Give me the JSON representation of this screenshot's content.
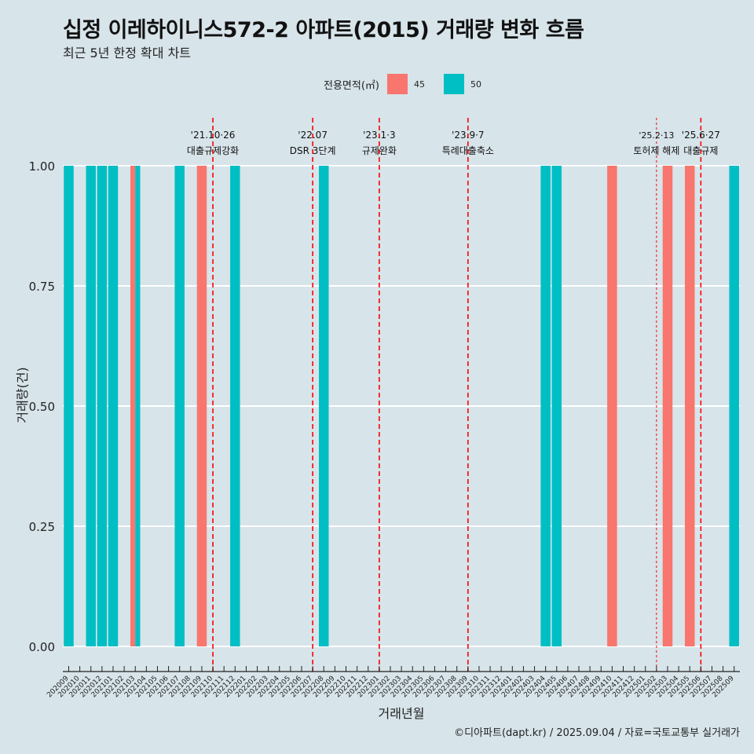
{
  "title": "십정 이레하이니스572-2 아파트(2015) 거래량 변화 흐름",
  "subtitle": "최근 5년 한정 확대 차트",
  "caption": "©디아파트(dapt.kr) / 2025.09.04 / 자료=국토교통부 실거래가",
  "colors": {
    "45": "#f8766d",
    "50": "#00bfc4",
    "background": "#d7e4ea",
    "grid": "#ffffff",
    "event_line": "#ff0000"
  },
  "chart_data": {
    "type": "bar",
    "xlabel": "거래년월",
    "ylabel": "거래량(건)",
    "ylim": [
      0,
      1
    ],
    "yticks": [
      "0.00",
      "0.25",
      "0.50",
      "0.75",
      "1.00"
    ],
    "legend": {
      "title": "전용면적(㎡)",
      "position": "top",
      "entries": [
        "45",
        "50"
      ]
    },
    "categories": [
      "202009",
      "202010",
      "202011",
      "202012",
      "202101",
      "202102",
      "202103",
      "202104",
      "202105",
      "202106",
      "202107",
      "202108",
      "202109",
      "202110",
      "202111",
      "202112",
      "202201",
      "202202",
      "202203",
      "202204",
      "202205",
      "202206",
      "202207",
      "202208",
      "202209",
      "202210",
      "202211",
      "202212",
      "202301",
      "202302",
      "202303",
      "202304",
      "202305",
      "202306",
      "202307",
      "202308",
      "202309",
      "202310",
      "202311",
      "202312",
      "202401",
      "202402",
      "202403",
      "202404",
      "202405",
      "202406",
      "202407",
      "202408",
      "202409",
      "202410",
      "202411",
      "202412",
      "202501",
      "202502",
      "202503",
      "202504",
      "202505",
      "202506",
      "202507",
      "202508",
      "202509"
    ],
    "bars": [
      {
        "month": "202009",
        "area": "50",
        "count": 1
      },
      {
        "month": "202011",
        "area": "50",
        "count": 1
      },
      {
        "month": "202012",
        "area": "50",
        "count": 1
      },
      {
        "month": "202101",
        "area": "50",
        "count": 1
      },
      {
        "month": "202103",
        "area": "45",
        "count": 1
      },
      {
        "month": "202103",
        "area": "50",
        "count": 1
      },
      {
        "month": "202107",
        "area": "50",
        "count": 1
      },
      {
        "month": "202109",
        "area": "45",
        "count": 1
      },
      {
        "month": "202112",
        "area": "50",
        "count": 1
      },
      {
        "month": "202208",
        "area": "50",
        "count": 1
      },
      {
        "month": "202404",
        "area": "50",
        "count": 1
      },
      {
        "month": "202405",
        "area": "50",
        "count": 1
      },
      {
        "month": "202410",
        "area": "45",
        "count": 1
      },
      {
        "month": "202503",
        "area": "45",
        "count": 1
      },
      {
        "month": "202505",
        "area": "45",
        "count": 1
      },
      {
        "month": "202509",
        "area": "50",
        "count": 1
      }
    ],
    "annotations": [
      {
        "month": "202110",
        "date": "'21.10·26",
        "label": "대출규제강화",
        "style": "dashed"
      },
      {
        "month": "202207",
        "date": "'22.07",
        "label": "DSR 3단계",
        "style": "dashed"
      },
      {
        "month": "202301",
        "date": "'23.1·3",
        "label": "규제완화",
        "style": "dashed"
      },
      {
        "month": "202309",
        "date": "'23.9·7",
        "label": "특례대출축소",
        "style": "dashed"
      },
      {
        "month": "202502",
        "date": "'25.2·13",
        "label": "토허제 해제",
        "style": "dotted"
      },
      {
        "month": "202506",
        "date": "'25.6·27",
        "label": "대출규제",
        "style": "dashed"
      }
    ]
  }
}
